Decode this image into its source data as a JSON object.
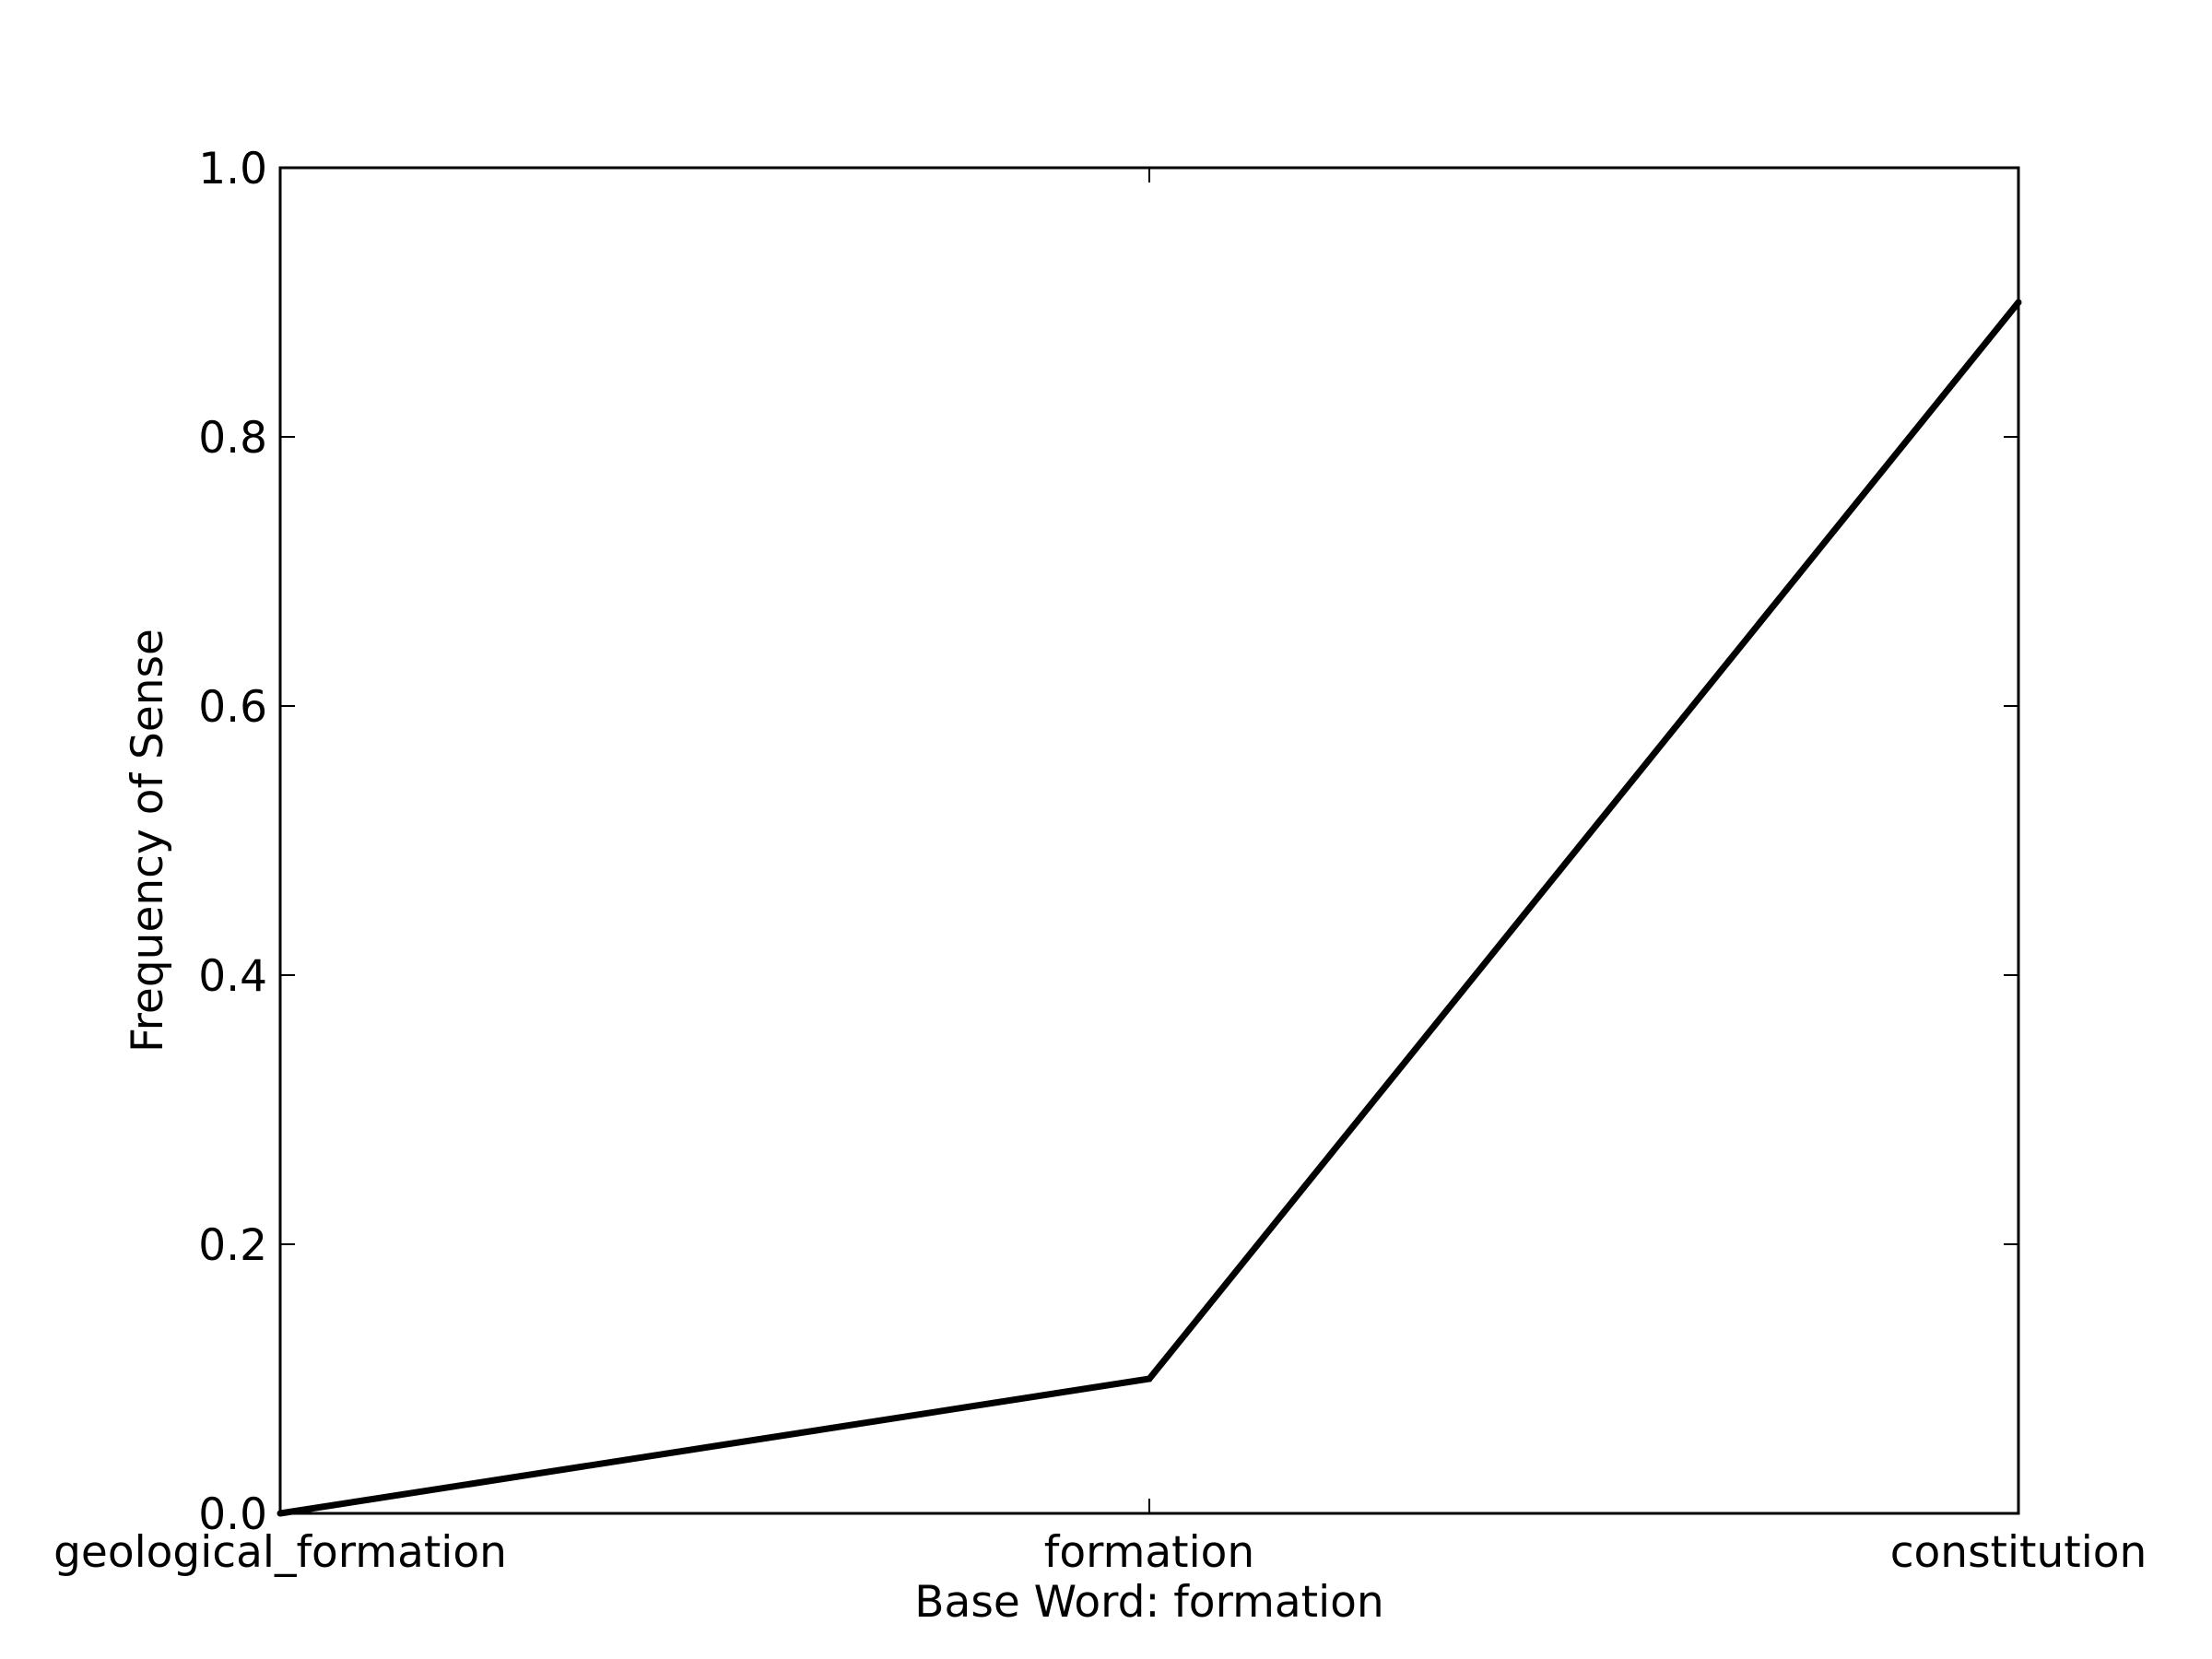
{
  "chart_data": {
    "type": "line",
    "categories": [
      "geological_formation",
      "formation",
      "constitution"
    ],
    "series": [
      {
        "values": [
          0.0,
          0.1,
          0.9
        ],
        "color": "#000000"
      }
    ],
    "xlabel": "Base Word: formation",
    "ylabel": "Frequency of Sense",
    "ylim": [
      0.0,
      1.0
    ],
    "yticks": [
      "0.0",
      "0.2",
      "0.4",
      "0.6",
      "0.8",
      "1.0"
    ],
    "grid": false,
    "legend": "none"
  }
}
